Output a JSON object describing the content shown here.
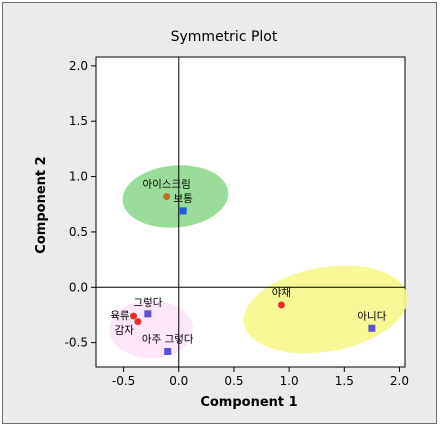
{
  "chart_data": {
    "type": "scatter",
    "title": "Symmetric Plot",
    "xlabel": "Component 1",
    "ylabel": "Component 2",
    "xlim": [
      -0.75,
      2.05
    ],
    "ylim": [
      -0.72,
      2.08
    ],
    "xticks": [
      -0.5,
      0.0,
      0.5,
      1.0,
      1.5,
      2.0
    ],
    "xtick_labels": [
      "-0.5",
      "0.0",
      "0.5",
      "1.0",
      "1.5",
      "2.0"
    ],
    "yticks": [
      -0.5,
      0.0,
      0.5,
      1.0,
      1.5,
      2.0
    ],
    "ytick_labels": [
      "-0.5",
      "0.0",
      "0.5",
      "1.0",
      "1.5",
      "2.0"
    ],
    "reference_lines": {
      "x": 0,
      "y": 0
    },
    "grid": false,
    "colors": {
      "background": "#ebebeb",
      "plot_background": "#ffffff",
      "row_marker": "#e2322b",
      "row_marker_3": "#c46a1e",
      "column_marker": "#5b4fd6",
      "column_marker_2": "#1d5fd4",
      "ellipse_green": "#8fd98f",
      "ellipse_yellow": "#f6f68a",
      "ellipse_pink": "#fbe3fa"
    },
    "groups": [
      {
        "color": "#8fd98f",
        "cx": -0.03,
        "cy": 0.82,
        "rx": 0.48,
        "ry": 0.28,
        "angle": -5
      },
      {
        "color": "#f6f68a",
        "cx": 1.33,
        "cy": -0.2,
        "rx": 0.75,
        "ry": 0.38,
        "angle": -10
      },
      {
        "color": "#fbe3fa",
        "cx": -0.25,
        "cy": -0.38,
        "rx": 0.38,
        "ry": 0.26,
        "angle": 0
      }
    ],
    "series": [
      {
        "marker": "circle",
        "points": [
          {
            "label": "아이스크림",
            "x": -0.11,
            "y": 0.82
          },
          {
            "label": "야채",
            "x": 0.93,
            "y": -0.16
          },
          {
            "label": "육류",
            "x": -0.41,
            "y": -0.26
          },
          {
            "label": "감자",
            "x": -0.37,
            "y": -0.31
          }
        ]
      },
      {
        "marker": "square",
        "points": [
          {
            "label": "보통",
            "x": 0.04,
            "y": 0.69
          },
          {
            "label": "아니다",
            "x": 1.75,
            "y": -0.37
          },
          {
            "label": "그렇다",
            "x": -0.28,
            "y": -0.24
          },
          {
            "label": "아주 그렇다",
            "x": -0.1,
            "y": -0.58
          }
        ]
      }
    ]
  }
}
